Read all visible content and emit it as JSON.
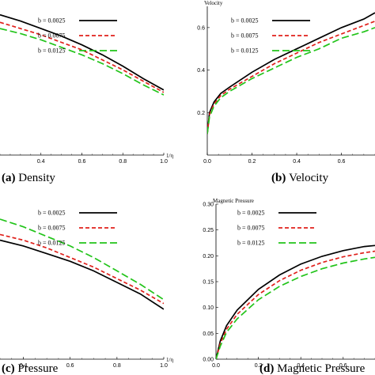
{
  "legend_labels": [
    "b = 0.0025",
    "b = 0.0075",
    "b = 0.0125"
  ],
  "series_colors": [
    "#000000",
    "#e0201b",
    "#22c41a"
  ],
  "series_dash": [
    "none",
    "5,3",
    "9,4"
  ],
  "chart_data": [
    {
      "id": "density",
      "type": "line",
      "caption_letter": "(a)",
      "caption_text": "Density",
      "xlabel": "1/η",
      "ylabel": "",
      "xlim": [
        0.2,
        1.0
      ],
      "ylim": [
        0.0,
        1.2
      ],
      "x_ticks": [
        "0.4",
        "0.6",
        "0.8",
        "1.0"
      ],
      "y_ticks": [],
      "x": [
        0.2,
        0.3,
        0.4,
        0.5,
        0.6,
        0.7,
        0.8,
        0.9,
        1.0
      ],
      "series": [
        {
          "name": "b = 0.0025",
          "values": [
            1.12,
            1.07,
            1.01,
            0.95,
            0.88,
            0.8,
            0.71,
            0.61,
            0.52
          ]
        },
        {
          "name": "b = 0.0075",
          "values": [
            1.06,
            1.01,
            0.96,
            0.9,
            0.84,
            0.76,
            0.68,
            0.59,
            0.5
          ]
        },
        {
          "name": "b = 0.0125",
          "values": [
            1.01,
            0.97,
            0.92,
            0.86,
            0.8,
            0.73,
            0.65,
            0.56,
            0.48
          ]
        }
      ]
    },
    {
      "id": "velocity",
      "type": "line",
      "caption_letter": "(b)",
      "caption_text": "Velocity",
      "xlabel": "",
      "ylabel": "Velocity",
      "xlim": [
        0.0,
        0.75
      ],
      "ylim": [
        0.0,
        0.7
      ],
      "x_ticks": [
        "0.0",
        "0.2",
        "0.4",
        "0.6"
      ],
      "y_ticks": [
        "0.2",
        "0.4",
        "0.6"
      ],
      "x": [
        0.0,
        0.01,
        0.03,
        0.06,
        0.1,
        0.2,
        0.3,
        0.4,
        0.5,
        0.6,
        0.7,
        0.75
      ],
      "series": [
        {
          "name": "b = 0.0025",
          "values": [
            0.1,
            0.2,
            0.25,
            0.29,
            0.32,
            0.39,
            0.45,
            0.5,
            0.55,
            0.6,
            0.64,
            0.67
          ]
        },
        {
          "name": "b = 0.0075",
          "values": [
            0.1,
            0.19,
            0.24,
            0.28,
            0.31,
            0.37,
            0.43,
            0.48,
            0.53,
            0.57,
            0.61,
            0.63
          ]
        },
        {
          "name": "b = 0.0125",
          "values": [
            0.1,
            0.18,
            0.23,
            0.27,
            0.3,
            0.36,
            0.41,
            0.46,
            0.5,
            0.55,
            0.58,
            0.6
          ]
        }
      ]
    },
    {
      "id": "pressure",
      "type": "line",
      "caption_letter": "(c)",
      "caption_text": "Pressure",
      "xlabel": "1/η",
      "ylabel": "",
      "xlim": [
        0.3,
        1.0
      ],
      "ylim": [
        0.0,
        0.8
      ],
      "x_ticks": [
        "0.4",
        "0.6",
        "0.8",
        "1.0"
      ],
      "y_ticks": [],
      "x": [
        0.3,
        0.4,
        0.5,
        0.6,
        0.7,
        0.8,
        0.9,
        1.0
      ],
      "series": [
        {
          "name": "b = 0.0025",
          "values": [
            0.62,
            0.59,
            0.55,
            0.51,
            0.46,
            0.4,
            0.34,
            0.26
          ]
        },
        {
          "name": "b = 0.0075",
          "values": [
            0.65,
            0.62,
            0.58,
            0.53,
            0.48,
            0.42,
            0.36,
            0.29
          ]
        },
        {
          "name": "b = 0.0125",
          "values": [
            0.73,
            0.69,
            0.64,
            0.59,
            0.53,
            0.46,
            0.39,
            0.31
          ]
        }
      ]
    },
    {
      "id": "magnetic-pressure",
      "type": "line",
      "caption_letter": "(d)",
      "caption_text": "Magnetic Pressure",
      "xlabel": "",
      "ylabel": "Magnetic Pressure",
      "xlim": [
        0.0,
        0.75
      ],
      "ylim": [
        0.0,
        0.3
      ],
      "x_ticks": [
        "0.0",
        "0.2",
        "0.4",
        "0.6"
      ],
      "y_ticks": [
        "0.00",
        "0.05",
        "0.10",
        "0.15",
        "0.20",
        "0.25",
        "0.30"
      ],
      "x": [
        0.0,
        0.02,
        0.05,
        0.1,
        0.2,
        0.3,
        0.4,
        0.5,
        0.6,
        0.7,
        0.75
      ],
      "series": [
        {
          "name": "b = 0.0025",
          "values": [
            0.0,
            0.035,
            0.065,
            0.095,
            0.135,
            0.163,
            0.184,
            0.199,
            0.21,
            0.218,
            0.22
          ]
        },
        {
          "name": "b = 0.0075",
          "values": [
            0.0,
            0.03,
            0.058,
            0.087,
            0.125,
            0.152,
            0.172,
            0.187,
            0.198,
            0.206,
            0.209
          ]
        },
        {
          "name": "b = 0.0125",
          "values": [
            0.0,
            0.025,
            0.052,
            0.078,
            0.115,
            0.141,
            0.16,
            0.175,
            0.186,
            0.194,
            0.197
          ]
        }
      ]
    }
  ]
}
